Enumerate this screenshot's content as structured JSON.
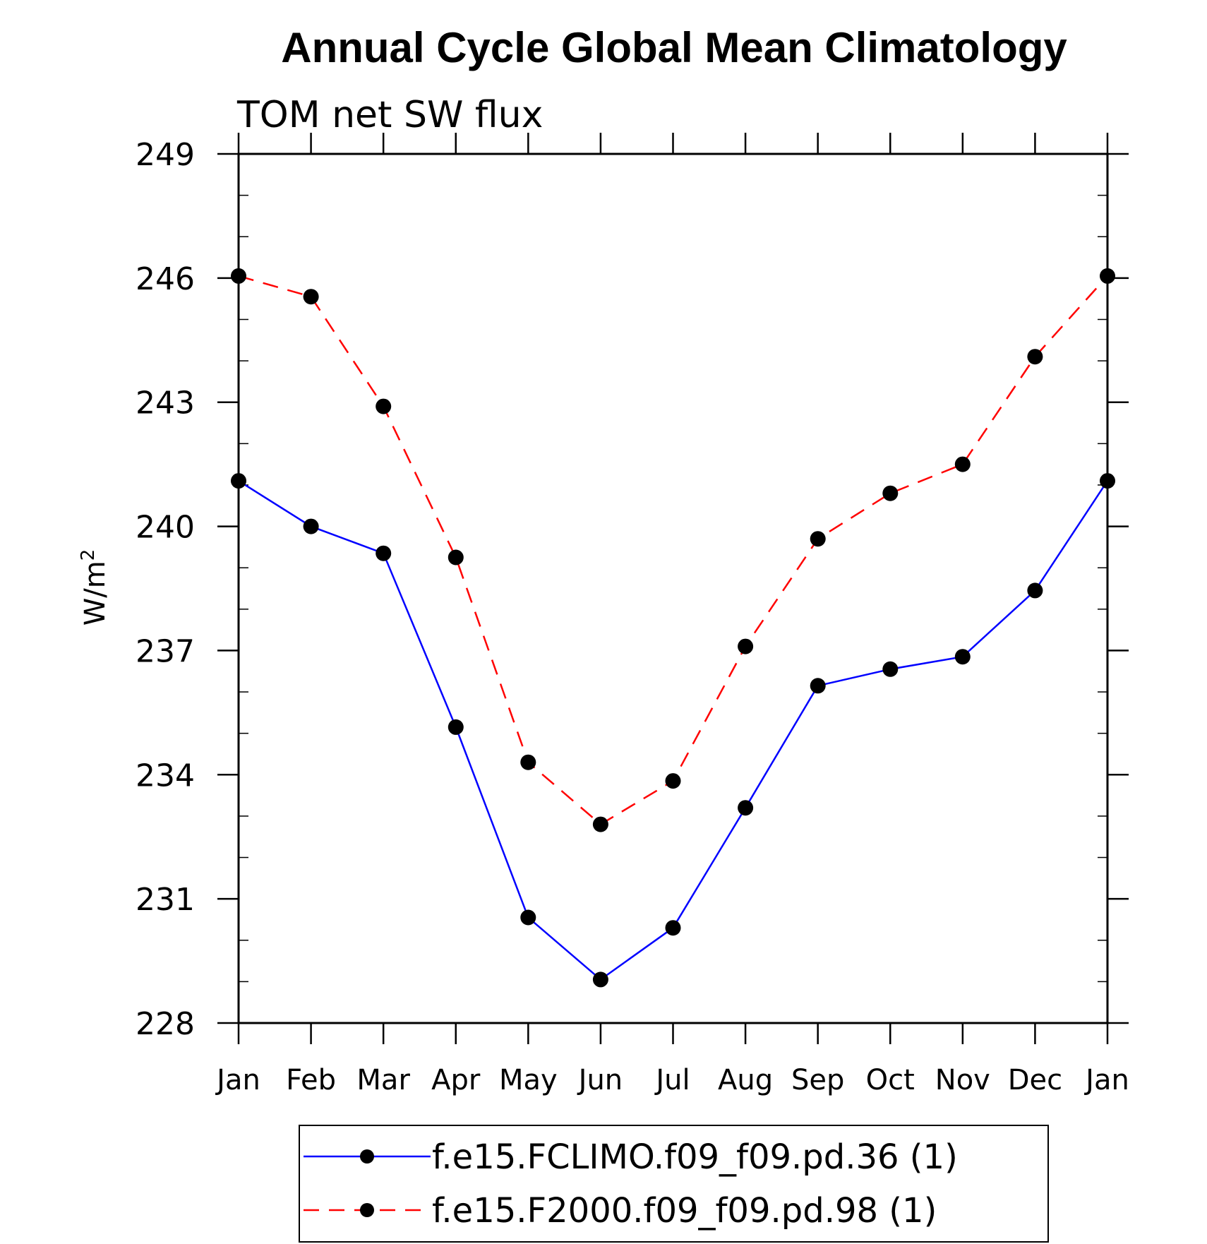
{
  "chart_data": {
    "type": "line",
    "title": "Annual Cycle Global Mean Climatology",
    "subtitle": "TOM net SW flux",
    "ylabel": "W/m",
    "ylabel_superscript": "2",
    "xlabel": "",
    "categories": [
      "Jan",
      "Feb",
      "Mar",
      "Apr",
      "May",
      "Jun",
      "Jul",
      "Aug",
      "Sep",
      "Oct",
      "Nov",
      "Dec",
      "Jan"
    ],
    "ylim": [
      228,
      249
    ],
    "yticks": [
      "228",
      "231",
      "234",
      "237",
      "240",
      "243",
      "246",
      "249"
    ],
    "grid": false,
    "legend_position": "bottom",
    "series": [
      {
        "name": "f.e15.FCLIMO.f09_f09.pd.36 (1)",
        "color": "#0000ff",
        "dash": "solid",
        "marker": "filled-circle",
        "values": [
          241.1,
          240.0,
          239.35,
          235.15,
          230.55,
          229.05,
          230.3,
          233.2,
          236.15,
          236.55,
          236.85,
          238.45,
          241.1
        ]
      },
      {
        "name": "f.e15.F2000.f09_f09.pd.98 (1)",
        "color": "#ff0000",
        "dash": "dashed",
        "marker": "filled-circle",
        "values": [
          246.05,
          245.55,
          242.9,
          239.25,
          234.3,
          232.8,
          233.85,
          237.1,
          239.7,
          240.8,
          241.5,
          244.1,
          246.05
        ]
      }
    ]
  }
}
